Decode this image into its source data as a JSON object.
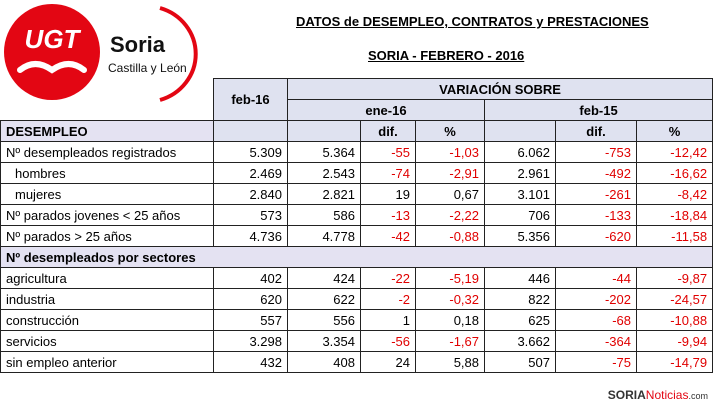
{
  "logo": {
    "brand": "UGT",
    "city": "Soria",
    "region": "Castilla y León"
  },
  "header": {
    "title": "DATOS de DESEMPLEO, CONTRATOS y PRESTACIONES",
    "subtitle": "SORIA - FEBRERO - 2016"
  },
  "table": {
    "period": "feb-16",
    "variation": "VARIACIÓN SOBRE",
    "compare": [
      "ene-16",
      "feb-15"
    ],
    "subheaders": [
      "dif.",
      "%"
    ],
    "sections": [
      {
        "title": "DESEMPLEO",
        "rows": [
          [
            "Nº desempleados registrados",
            "5.309",
            "5.364",
            "-55",
            "-1,03",
            "6.062",
            "-753",
            "-12,42"
          ],
          [
            "hombres",
            "2.469",
            "2.543",
            "-74",
            "-2,91",
            "2.961",
            "-492",
            "-16,62"
          ],
          [
            "mujeres",
            "2.840",
            "2.821",
            "19",
            "0,67",
            "3.101",
            "-261",
            "-8,42"
          ],
          [
            "Nº parados jovenes < 25 años",
            "573",
            "586",
            "-13",
            "-2,22",
            "706",
            "-133",
            "-18,84"
          ],
          [
            "Nº parados > 25 años",
            "4.736",
            "4.778",
            "-42",
            "-0,88",
            "5.356",
            "-620",
            "-11,58"
          ]
        ]
      },
      {
        "title": "Nº desempleados por sectores",
        "rows": [
          [
            "agricultura",
            "402",
            "424",
            "-22",
            "-5,19",
            "446",
            "-44",
            "-9,87"
          ],
          [
            "industria",
            "620",
            "622",
            "-2",
            "-0,32",
            "822",
            "-202",
            "-24,57"
          ],
          [
            "construcción",
            "557",
            "556",
            "1",
            "0,18",
            "625",
            "-68",
            "-10,88"
          ],
          [
            "servicios",
            "3.298",
            "3.354",
            "-56",
            "-1,67",
            "3.662",
            "-364",
            "-9,94"
          ],
          [
            "sin empleo anterior",
            "432",
            "408",
            "24",
            "5,88",
            "507",
            "-75",
            "-14,79"
          ]
        ]
      }
    ]
  },
  "watermark": [
    "SORIA",
    "Noticias",
    ".com"
  ]
}
